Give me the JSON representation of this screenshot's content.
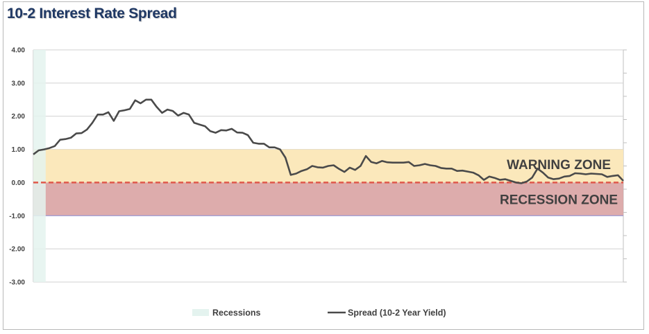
{
  "chart_data": {
    "type": "line",
    "title": "10-2 Interest Rate Spread",
    "ylim": [
      -3,
      4
    ],
    "yticks": [
      "4.00",
      "3.00",
      "2.00",
      "1.00",
      "0.00",
      "-1.00",
      "-2.00",
      "-3.00"
    ],
    "grid": true,
    "legend_position": "bottom",
    "zones": [
      {
        "label": "WARNING ZONE",
        "from": 0,
        "to": 1,
        "color": "#fbe6b4"
      },
      {
        "label": "RECESSION ZONE",
        "from": -1,
        "to": 0,
        "color": "#d9a3a3"
      }
    ],
    "zero_line_color": "#e0584a",
    "recession_shading": {
      "name": "Recessions",
      "color": "#e4f3ef",
      "spans_fraction": [
        [
          0.0,
          0.021
        ]
      ]
    },
    "series": [
      {
        "name": "Spread (10-2 Year Yield)",
        "color": "#4a4a4a",
        "values": [
          0.85,
          0.97,
          1.0,
          1.04,
          1.1,
          1.29,
          1.31,
          1.35,
          1.48,
          1.49,
          1.6,
          1.8,
          2.05,
          2.05,
          2.12,
          1.86,
          2.15,
          2.18,
          2.22,
          2.48,
          2.39,
          2.5,
          2.5,
          2.28,
          2.1,
          2.2,
          2.16,
          2.02,
          2.1,
          2.05,
          1.8,
          1.75,
          1.7,
          1.55,
          1.5,
          1.58,
          1.57,
          1.62,
          1.51,
          1.5,
          1.43,
          1.2,
          1.17,
          1.17,
          1.06,
          1.06,
          1.0,
          0.75,
          0.23,
          0.27,
          0.35,
          0.4,
          0.5,
          0.46,
          0.45,
          0.5,
          0.52,
          0.41,
          0.32,
          0.45,
          0.38,
          0.5,
          0.8,
          0.62,
          0.58,
          0.65,
          0.61,
          0.6,
          0.6,
          0.6,
          0.62,
          0.5,
          0.52,
          0.56,
          0.52,
          0.5,
          0.44,
          0.42,
          0.42,
          0.35,
          0.36,
          0.33,
          0.3,
          0.22,
          0.08,
          0.18,
          0.14,
          0.08,
          0.1,
          0.05,
          0.0,
          -0.02,
          0.03,
          0.15,
          0.42,
          0.3,
          0.15,
          0.1,
          0.12,
          0.18,
          0.2,
          0.28,
          0.27,
          0.25,
          0.27,
          0.26,
          0.25,
          0.17,
          0.2,
          0.22,
          0.05
        ]
      }
    ]
  }
}
